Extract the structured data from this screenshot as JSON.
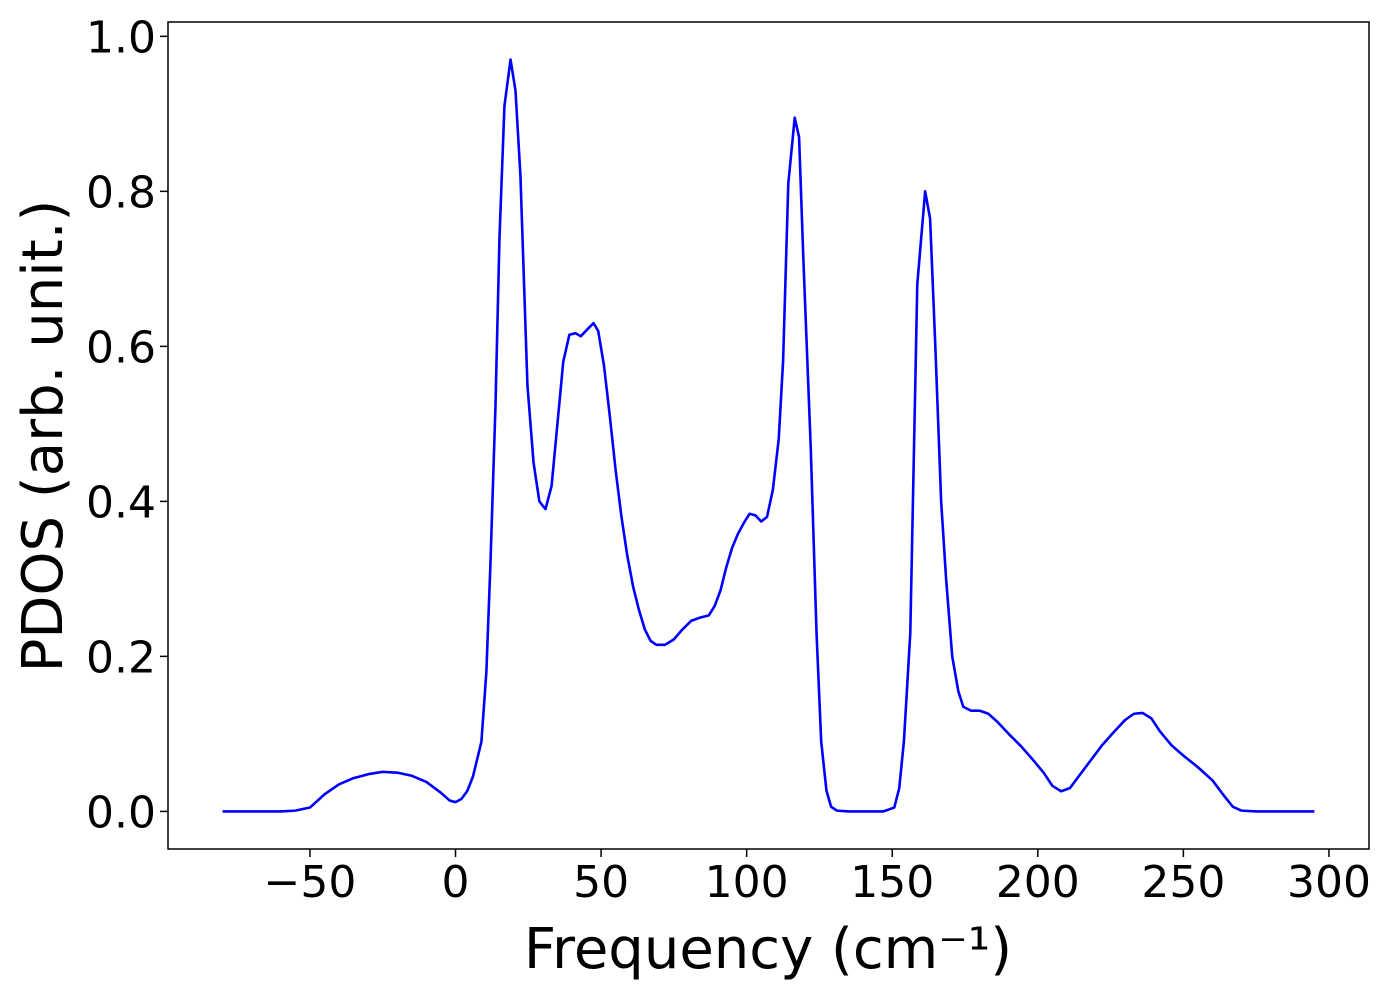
{
  "chart_data": {
    "type": "line",
    "xlabel": "Frequency (cm⁻¹)",
    "ylabel": "PDOS (arb. unit.)",
    "xlim": [
      -98.75,
      313.75
    ],
    "ylim": [
      -0.0485,
      1.0185
    ],
    "xticks": [
      {
        "value": -50,
        "label": "−50"
      },
      0,
      50,
      100,
      150,
      200,
      250,
      300
    ],
    "yticks": [
      {
        "value": 0,
        "label": "0.0"
      },
      {
        "value": 0.2,
        "label": "0.2"
      },
      {
        "value": 0.4,
        "label": "0.4"
      },
      {
        "value": 0.6,
        "label": "0.6"
      },
      {
        "value": 0.8,
        "label": "0.8"
      },
      {
        "value": 1.0,
        "label": "1.0"
      }
    ],
    "series": [
      {
        "color": "#0000ff",
        "x": [
          -80,
          -70,
          -60,
          -55,
          -50,
          -45,
          -40,
          -35,
          -30,
          -25,
          -20,
          -15,
          -10,
          -5,
          -2,
          0,
          2,
          4,
          6,
          8.9,
          10.6,
          12,
          13.7,
          15.1,
          16.8,
          18.9,
          20.6,
          22.3,
          24.7,
          26.8,
          28.8,
          30.9,
          33,
          35,
          37,
          39.1,
          41.2,
          43,
          45.3,
          47.4,
          49,
          51,
          53,
          55,
          57,
          59,
          61,
          63,
          65,
          67,
          69,
          72,
          75,
          78,
          81,
          84,
          87,
          89,
          91,
          93,
          95,
          97,
          99,
          101,
          103,
          105,
          107,
          109,
          111,
          112.5,
          114.3,
          116.5,
          118,
          119.5,
          122,
          124,
          125.6,
          127.4,
          129,
          131,
          135,
          140,
          147,
          150.7,
          152.4,
          154,
          156.2,
          158.6,
          161.3,
          163,
          164.8,
          166.8,
          168.5,
          170.6,
          172.7,
          174.4,
          177,
          180,
          183,
          186,
          190,
          194,
          198,
          202,
          205,
          208,
          211,
          214,
          218,
          222,
          226,
          230,
          233,
          236,
          239,
          242,
          246,
          250,
          255,
          260,
          264,
          267,
          270,
          275,
          285,
          295
        ],
        "values": [
          0,
          0,
          0,
          0.001,
          0.005,
          0.022,
          0.035,
          0.043,
          0.048,
          0.051,
          0.05,
          0.046,
          0.038,
          0.024,
          0.014,
          0.012,
          0.016,
          0.026,
          0.045,
          0.09,
          0.18,
          0.32,
          0.52,
          0.74,
          0.91,
          0.97,
          0.93,
          0.82,
          0.55,
          0.45,
          0.4,
          0.39,
          0.42,
          0.5,
          0.58,
          0.615,
          0.617,
          0.613,
          0.622,
          0.63,
          0.62,
          0.575,
          0.51,
          0.44,
          0.38,
          0.33,
          0.29,
          0.26,
          0.235,
          0.22,
          0.215,
          0.215,
          0.222,
          0.235,
          0.246,
          0.25,
          0.253,
          0.265,
          0.285,
          0.315,
          0.34,
          0.358,
          0.372,
          0.384,
          0.382,
          0.374,
          0.38,
          0.415,
          0.48,
          0.58,
          0.81,
          0.895,
          0.87,
          0.71,
          0.47,
          0.23,
          0.09,
          0.027,
          0.006,
          0.001,
          0,
          0,
          0,
          0.005,
          0.03,
          0.09,
          0.23,
          0.68,
          0.8,
          0.765,
          0.6,
          0.4,
          0.3,
          0.2,
          0.155,
          0.135,
          0.13,
          0.13,
          0.126,
          0.116,
          0.1,
          0.085,
          0.068,
          0.05,
          0.033,
          0.026,
          0.03,
          0.045,
          0.065,
          0.085,
          0.102,
          0.118,
          0.126,
          0.127,
          0.12,
          0.103,
          0.085,
          0.072,
          0.057,
          0.04,
          0.02,
          0.006,
          0.001,
          0,
          0,
          0
        ]
      }
    ]
  }
}
